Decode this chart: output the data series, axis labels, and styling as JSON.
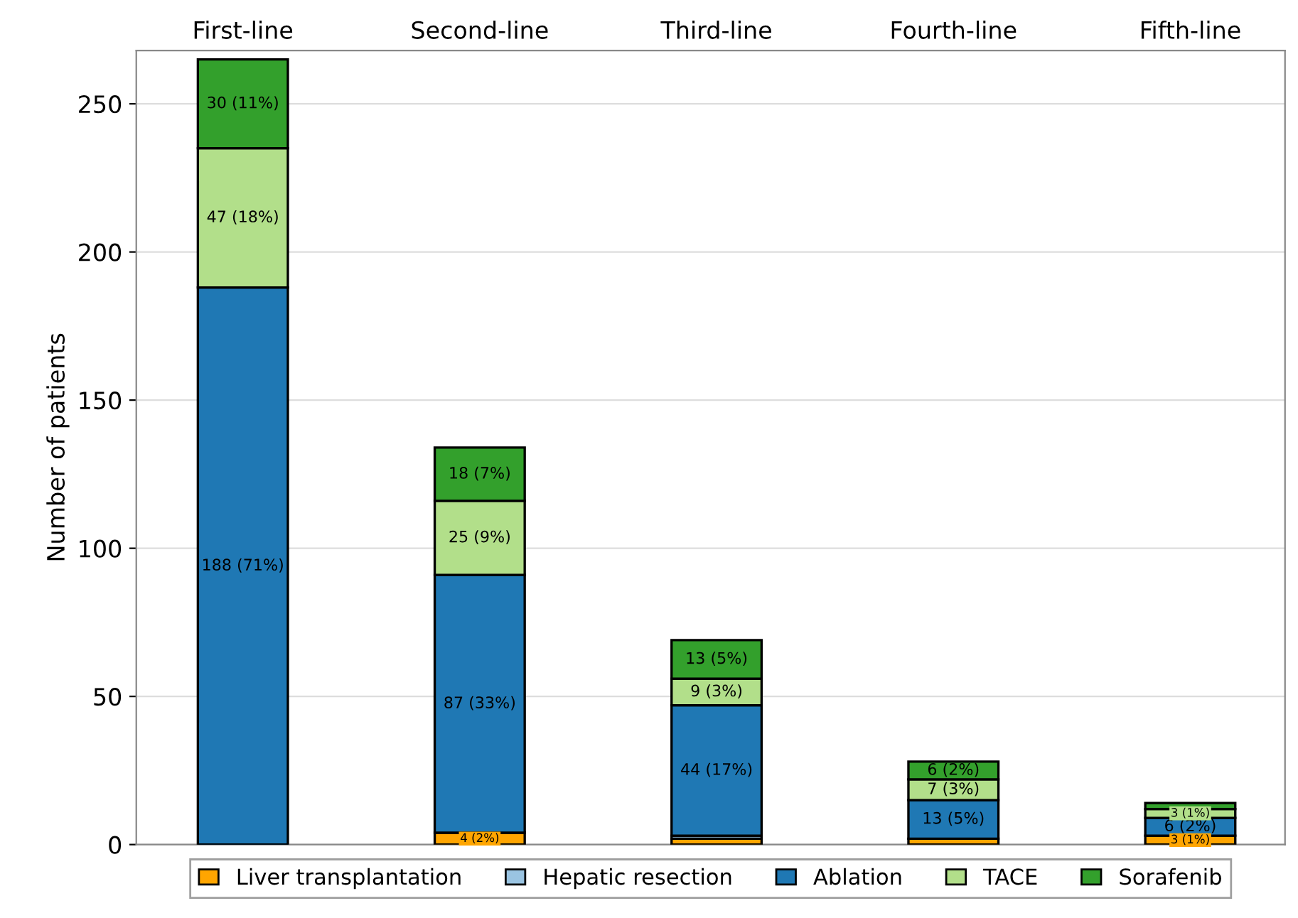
{
  "chart_data": {
    "type": "bar",
    "stacked": true,
    "ylabel": "Number of patients",
    "categories": [
      "First-line",
      "Second-line",
      "Third-line",
      "Fourth-line",
      "Fifth-line"
    ],
    "series": [
      {
        "name": "Liver transplantation",
        "color": "#ffa500",
        "values": [
          0,
          4,
          2,
          2,
          3
        ],
        "value_labels": [
          null,
          "4 (2%)",
          null,
          null,
          "3 (1%)"
        ]
      },
      {
        "name": "Hepatic resection",
        "color": "#9ac4e2",
        "values": [
          null,
          null,
          1,
          0,
          0
        ],
        "value_labels": [
          null,
          null,
          null,
          null,
          null
        ]
      },
      {
        "name": "Ablation",
        "color": "#1f78b4",
        "values": [
          188,
          87,
          44,
          13,
          6
        ],
        "value_labels": [
          "188 (71%)",
          "87 (33%)",
          "44 (17%)",
          "13 (5%)",
          "6 (2%)"
        ]
      },
      {
        "name": "TACE",
        "color": "#b2df8a",
        "values": [
          47,
          25,
          9,
          7,
          3
        ],
        "value_labels": [
          "47 (18%)",
          "25 (9%)",
          "9 (3%)",
          "7 (3%)",
          "3 (1%)"
        ]
      },
      {
        "name": "Sorafenib",
        "color": "#33a02c",
        "values": [
          30,
          18,
          13,
          6,
          2
        ],
        "value_labels": [
          "30 (11%)",
          "18 (7%)",
          "13 (5%)",
          "6 (2%)",
          null
        ]
      }
    ],
    "ylim": [
      0,
      268
    ],
    "yticks": [
      0,
      50,
      100,
      150,
      200,
      250
    ],
    "grid": "y",
    "legend": "bottom"
  }
}
